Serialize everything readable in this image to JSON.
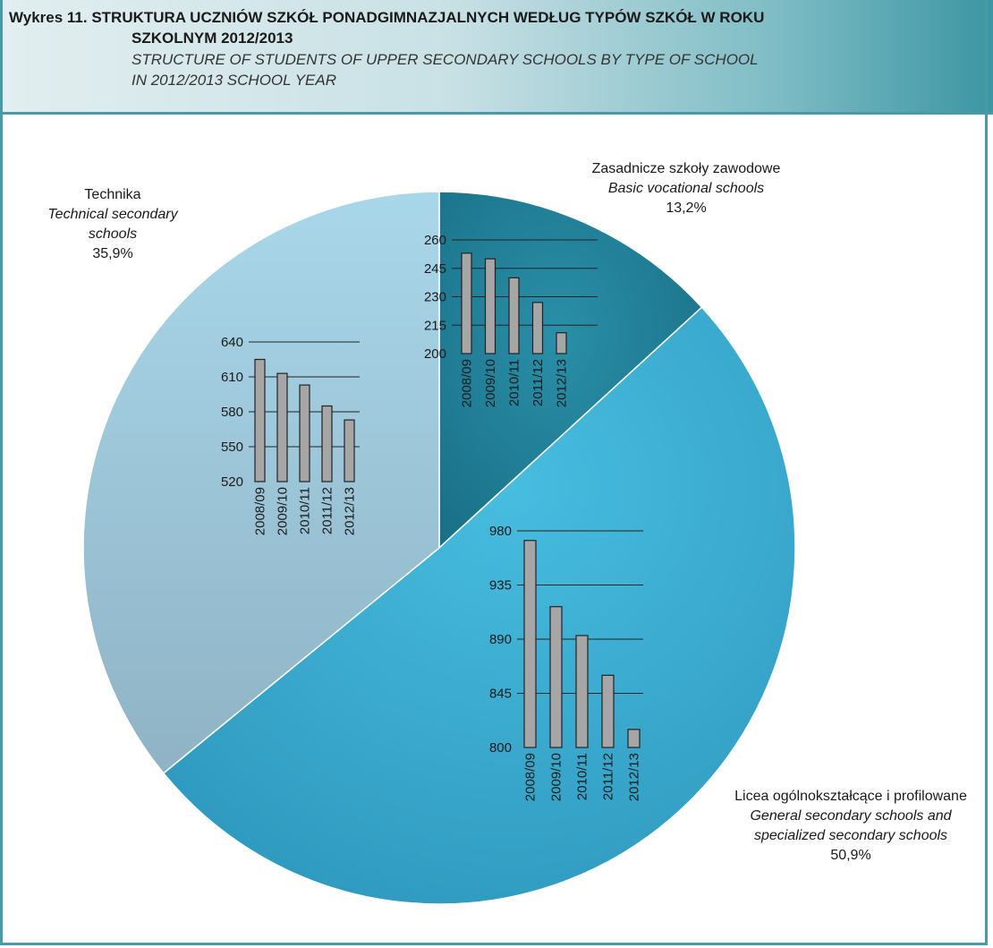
{
  "header": {
    "title_pl_line1": "Wykres 11. STRUKTURA UCZNIÓW SZKÓŁ PONADGIMNAZJALNYCH WEDŁUG TYPÓW SZKÓŁ W ROKU",
    "title_pl_line2": "SZKOLNYM 2012/2013",
    "title_en_line1": "STRUCTURE OF STUDENTS OF UPPER SECONDARY SCHOOLS BY TYPE OF SCHOOL",
    "title_en_line2": "IN 2012/2013 SCHOOL YEAR"
  },
  "colors": {
    "header_accent": "#3c96a3",
    "slice_basic": "#1f7c95",
    "slice_general": "#3aaed1",
    "slice_technical": "#9fc9db",
    "bar_fill": "#a6a6a6"
  },
  "chart_data": [
    {
      "type": "pie",
      "slices": [
        {
          "key": "basic",
          "label_pl": "Zasadnicze szkoły zawodowe",
          "label_en": [
            "Basic vocational schools"
          ],
          "value": 13.2,
          "value_label": "13,2%"
        },
        {
          "key": "general",
          "label_pl": "Licea ogólnokształcące i profilowane",
          "label_en": [
            "General secondary schools and",
            "specialized secondary schools"
          ],
          "value": 50.9,
          "value_label": "50,9%"
        },
        {
          "key": "technical",
          "label_pl": "Technika",
          "label_en": [
            "Technical secondary",
            "schools"
          ],
          "value": 35.9,
          "value_label": "35,9%"
        }
      ]
    },
    {
      "type": "bar",
      "key": "basic",
      "categories": [
        "2008/09",
        "2009/10",
        "2010/11",
        "2011/12",
        "2012/13"
      ],
      "values": [
        253,
        250,
        240,
        227,
        211
      ],
      "ylim": [
        200,
        260
      ],
      "yticks": [
        200,
        215,
        230,
        245,
        260
      ]
    },
    {
      "type": "bar",
      "key": "technical",
      "categories": [
        "2008/09",
        "2009/10",
        "2010/11",
        "2011/12",
        "2012/13"
      ],
      "values": [
        625,
        613,
        603,
        585,
        573
      ],
      "ylim": [
        520,
        640
      ],
      "yticks": [
        520,
        550,
        580,
        610,
        640
      ]
    },
    {
      "type": "bar",
      "key": "general",
      "categories": [
        "2008/09",
        "2009/10",
        "2010/11",
        "2011/12",
        "2012/13"
      ],
      "values": [
        972,
        917,
        893,
        860,
        815
      ],
      "ylim": [
        800,
        980
      ],
      "yticks": [
        800,
        845,
        890,
        935,
        980
      ]
    }
  ]
}
